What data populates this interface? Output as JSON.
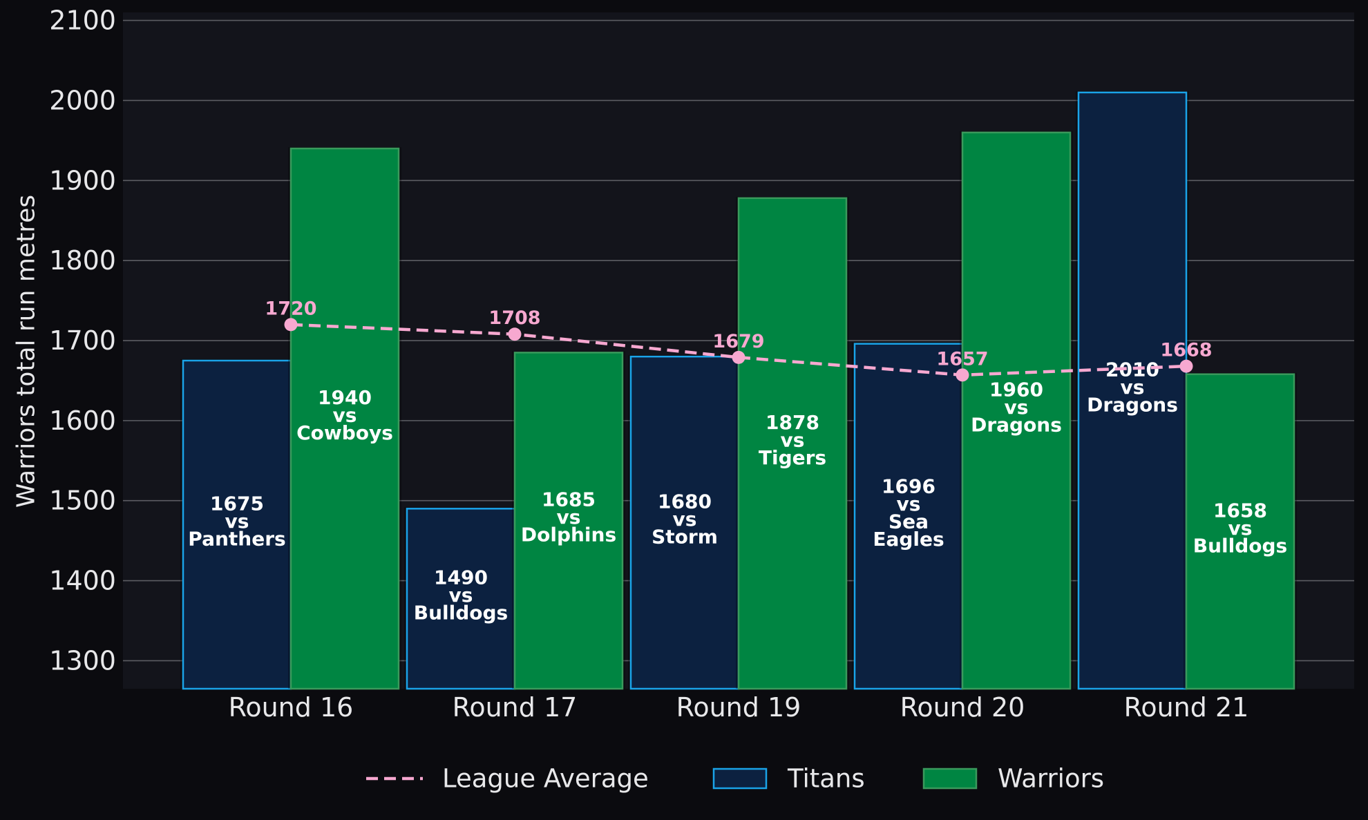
{
  "chart_data": {
    "type": "bar",
    "title": "",
    "xlabel": "",
    "ylabel": "Warriors total run metres",
    "ylim": [
      1265,
      2110
    ],
    "yticks": [
      1300,
      1400,
      1500,
      1600,
      1700,
      1800,
      1900,
      2000,
      2100
    ],
    "grid": true,
    "categories": [
      "Round 16",
      "Round 17",
      "Round 19",
      "Round 20",
      "Round 21"
    ],
    "series": [
      {
        "name": "Titans",
        "color": "#0c2140",
        "edge": "#1aa3e8",
        "values": [
          1675,
          1490,
          1680,
          1696,
          2010
        ],
        "labels": [
          [
            "1675",
            "vs",
            "Panthers"
          ],
          [
            "1490",
            "vs",
            "Bulldogs"
          ],
          [
            "1680",
            "vs",
            "Storm"
          ],
          [
            "1696",
            "vs",
            "Sea",
            "Eagles"
          ],
          [
            "2010",
            "vs",
            "Dragons"
          ]
        ]
      },
      {
        "name": "Warriors",
        "color": "#008542",
        "edge": "#3a9a5c",
        "values": [
          1940,
          1685,
          1878,
          1960,
          1658
        ],
        "labels": [
          [
            "1940",
            "vs",
            "Cowboys"
          ],
          [
            "1685",
            "vs",
            "Dolphins"
          ],
          [
            "1878",
            "vs",
            "Tigers"
          ],
          [
            "1960",
            "vs",
            "Dragons"
          ],
          [
            "1658",
            "vs",
            "Bulldogs"
          ]
        ]
      }
    ],
    "line": {
      "name": "League Average",
      "color": "#f7a8d0",
      "style": "dashed",
      "values": [
        1720,
        1708,
        1679,
        1657,
        1668
      ]
    },
    "legend": {
      "placement": "bottom",
      "entries": [
        "League Average",
        "Titans",
        "Warriors"
      ]
    },
    "colors": {
      "background": "#0b0b0f",
      "plot_background": "#13141b",
      "grid": "#5c5d63",
      "text": "#e8e8ea",
      "bar_label": "#ffffff"
    }
  }
}
